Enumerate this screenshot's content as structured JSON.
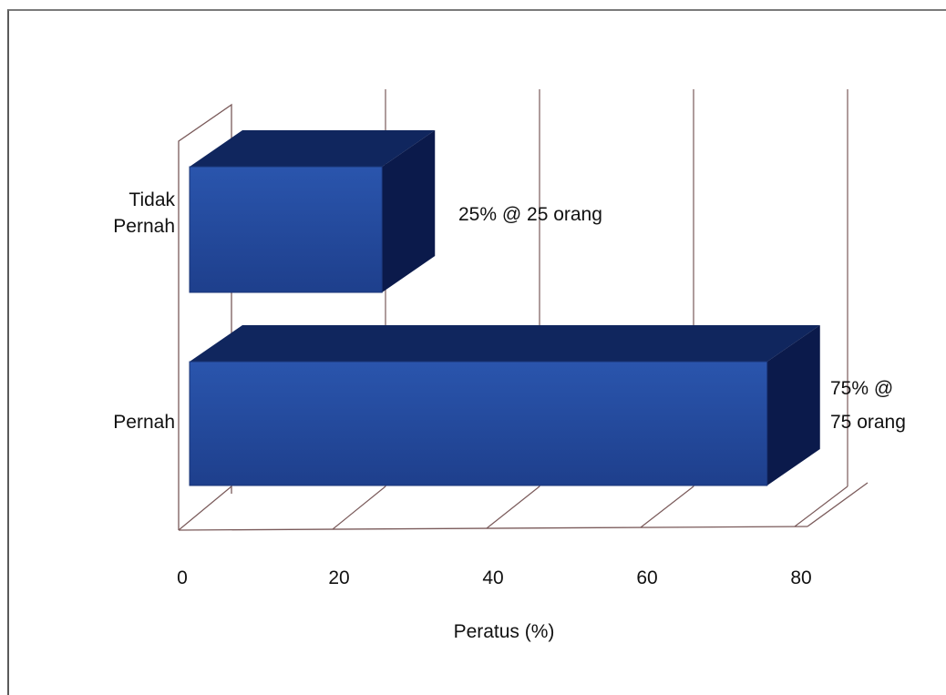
{
  "chart_data": {
    "type": "bar",
    "orientation": "horizontal",
    "three_d": true,
    "categories": [
      "Tidak Pernah",
      "Pernah"
    ],
    "category_label_lines": [
      [
        "Tidak",
        "Pernah"
      ],
      [
        "Pernah"
      ]
    ],
    "values": [
      25,
      75
    ],
    "data_labels": [
      [
        "25% @ 25 orang"
      ],
      [
        "75% @",
        "75 orang"
      ]
    ],
    "xlabel": "Peratus (%)",
    "xlim": [
      0,
      80
    ],
    "xticks": [
      0,
      20,
      40,
      60,
      80
    ],
    "grid": true,
    "colors": {
      "front": "#23489a",
      "top": "#10265e",
      "side": "#0b1a4b",
      "grid": "#7a5a5a"
    }
  }
}
